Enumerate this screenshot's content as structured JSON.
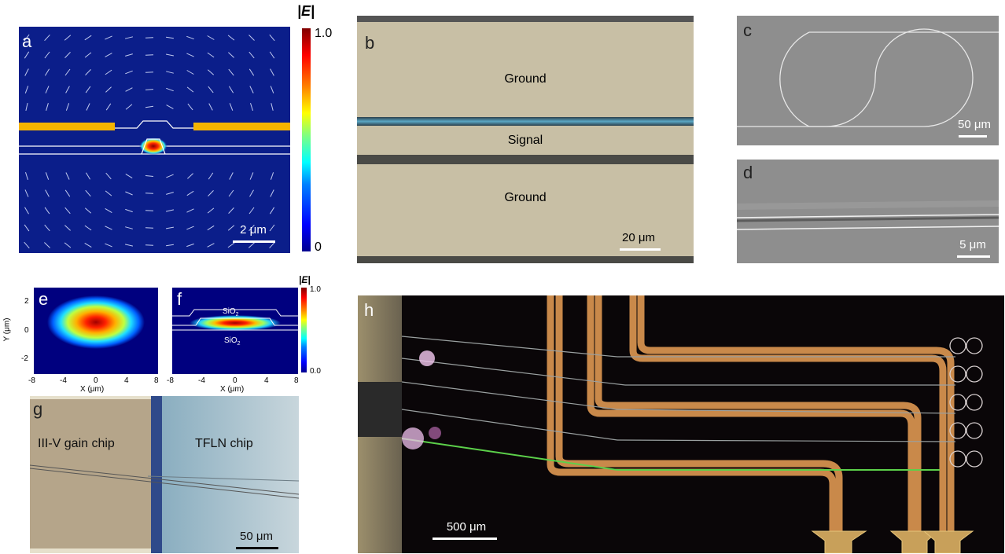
{
  "figure": {
    "panel_a": {
      "label": "a",
      "scalebar": "2 μm",
      "colorbar_title": "|E|",
      "colorbar_max": "1.0",
      "colorbar_min": "0"
    },
    "panel_b": {
      "label": "b",
      "region_top": "Ground",
      "region_mid": "Signal",
      "region_bottom": "Ground",
      "scalebar": "20 μm"
    },
    "panel_c": {
      "label": "c",
      "scalebar": "50 μm"
    },
    "panel_d": {
      "label": "d",
      "scalebar": "5 μm"
    },
    "panel_e": {
      "label": "e",
      "ylabel": "Y (μm)",
      "xlabel": "X (μm)",
      "yticks": [
        "2",
        "0",
        "-2"
      ],
      "xticks": [
        "-8",
        "-4",
        "0",
        "4",
        "8"
      ]
    },
    "panel_f": {
      "label": "f",
      "xlabel": "X (μm)",
      "xticks": [
        "-8",
        "-4",
        "0",
        "4",
        "8"
      ],
      "material_top": "SiO",
      "material_bottom": "SiO",
      "subscript": "2",
      "colorbar_title": "|E|",
      "colorbar_max": "1.0",
      "colorbar_min": "0.0"
    },
    "panel_g": {
      "label": "g",
      "left_text": "III-V gain chip",
      "right_text": "TFLN chip",
      "scalebar": "50 μm"
    },
    "panel_h": {
      "label": "h",
      "scalebar": "500 μm"
    }
  },
  "colors": {
    "field_background": "#0b1e8a",
    "electrode_gold": "#f5b400",
    "metal_beige": "#c8bfa5",
    "sem_gray": "#8e8e8e",
    "micro_dark": "#0a0608"
  }
}
